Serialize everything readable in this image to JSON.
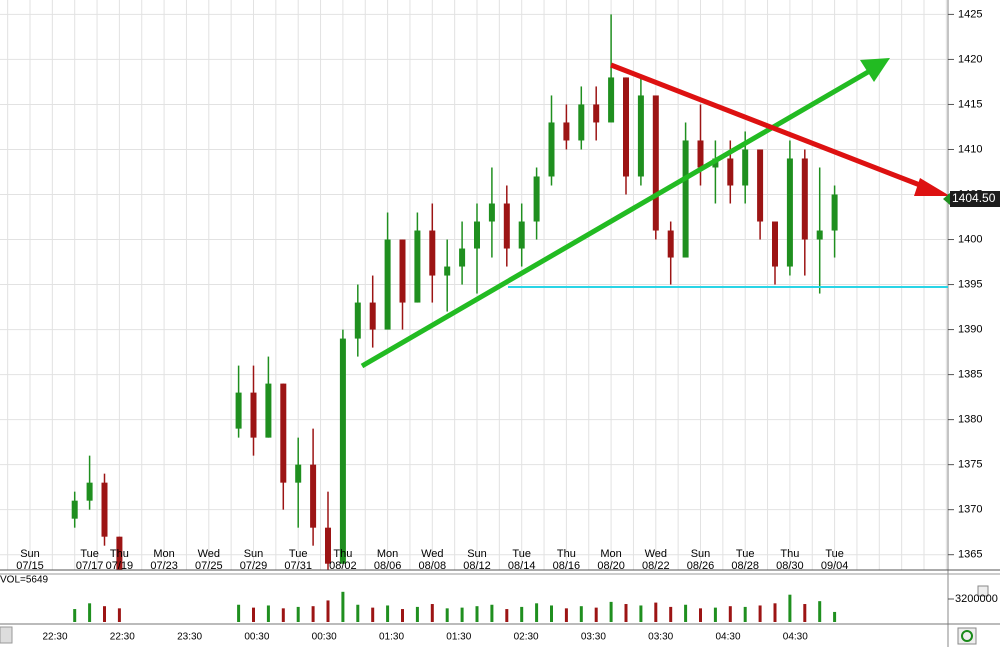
{
  "chart_data": {
    "type": "candlestick",
    "categories": [
      null,
      null,
      null,
      null,
      "Tue 07/17",
      null,
      "Thu 07/19",
      null,
      null,
      "Mon 07/23",
      null,
      null,
      "Wed 07/25",
      null,
      null,
      "Sun 07/29",
      null,
      null,
      "Tue 07/31",
      null,
      null,
      "Thu 08/02",
      null,
      null,
      "Mon 08/06",
      null,
      null,
      "Wed 08/08",
      null,
      null,
      "Sun 08/12",
      null,
      null,
      "Tue 08/14",
      null,
      null,
      "Thu 08/16",
      null,
      null,
      "Mon 08/20",
      null,
      null,
      "Wed 08/22",
      null,
      null,
      "Sun 08/26",
      null,
      null,
      "Tue 08/28",
      null,
      null,
      "Thu 08/30",
      null,
      null,
      "Tue 09/04"
    ],
    "first_label": "Sun 07/15",
    "open": [
      null,
      null,
      null,
      1369,
      1371,
      1373,
      1367,
      null,
      null,
      null,
      null,
      null,
      null,
      null,
      1379,
      1383,
      1378,
      1384,
      1373,
      1375,
      1368,
      1364,
      1389,
      1393,
      1390,
      1400,
      1393,
      1401,
      1396,
      1397,
      1399,
      1402,
      1404,
      1399,
      1402,
      1407,
      1413,
      1411,
      1415,
      1413,
      1418,
      1407,
      1416,
      1401,
      1398,
      1411,
      1408,
      1409,
      1406,
      1410,
      1402,
      1397,
      1409,
      1400,
      1401
    ],
    "high": [
      null,
      null,
      null,
      1372,
      1376,
      1374,
      1367,
      null,
      null,
      null,
      null,
      null,
      null,
      null,
      1386,
      1386,
      1387,
      1384,
      1378,
      1379,
      1372,
      1390,
      1395,
      1396,
      1403,
      1400,
      1403,
      1404,
      1400,
      1402,
      1404,
      1408,
      1406,
      1404,
      1408,
      1416,
      1415,
      1417,
      1417,
      1425,
      1418,
      1418,
      1416,
      1402,
      1413,
      1415,
      1411,
      1411,
      1412,
      1410,
      1402,
      1411,
      1410,
      1408,
      1406
    ],
    "low": [
      null,
      null,
      null,
      1368,
      1370,
      1366,
      1362,
      null,
      null,
      null,
      null,
      null,
      null,
      null,
      1378,
      1376,
      1378,
      1370,
      1368,
      1366,
      1362,
      1364,
      1387,
      1388,
      1390,
      1390,
      1393,
      1393,
      1392,
      1395,
      1394,
      1398,
      1397,
      1397,
      1400,
      1406,
      1410,
      1410,
      1411,
      1413,
      1405,
      1406,
      1400,
      1395,
      1398,
      1406,
      1404,
      1404,
      1404,
      1400,
      1395,
      1396,
      1396,
      1394,
      1398
    ],
    "close": [
      null,
      null,
      null,
      1371,
      1373,
      1367,
      1363,
      null,
      null,
      null,
      null,
      null,
      null,
      null,
      1383,
      1378,
      1384,
      1373,
      1375,
      1368,
      1364,
      1389,
      1393,
      1390,
      1400,
      1393,
      1401,
      1396,
      1397,
      1399,
      1402,
      1404,
      1399,
      1402,
      1407,
      1413,
      1411,
      1415,
      1413,
      1418,
      1407,
      1416,
      1401,
      1398,
      1411,
      1408,
      1409,
      1406,
      1410,
      1402,
      1397,
      1409,
      1400,
      1401,
      1405
    ],
    "volume": [
      null,
      null,
      null,
      1800000,
      2600000,
      2200000,
      1900000,
      null,
      null,
      null,
      null,
      null,
      null,
      null,
      2400000,
      2000000,
      2300000,
      1900000,
      2100000,
      2200000,
      3000000,
      4200000,
      2400000,
      2000000,
      2300000,
      1800000,
      2100000,
      2500000,
      1900000,
      2000000,
      2200000,
      2400000,
      1800000,
      2100000,
      2600000,
      2300000,
      1900000,
      2200000,
      2000000,
      2800000,
      2500000,
      2300000,
      2700000,
      2100000,
      2400000,
      1900000,
      2000000,
      2200000,
      2100000,
      2300000,
      2600000,
      3800000,
      2500000,
      2900000,
      1400000
    ],
    "up_color": "#1f8f1f",
    "down_color": "#9c1414",
    "ylim": [
      1363.3,
      1426.6
    ],
    "yticks": [
      1365,
      1370,
      1375,
      1380,
      1385,
      1390,
      1395,
      1400,
      1405,
      1410,
      1415,
      1420,
      1425
    ],
    "grid": true,
    "last_price": {
      "value": 1404.5,
      "label": "1404.50"
    },
    "volume_label": "VOL=5649",
    "volume_ylim": [
      0,
      6400000
    ],
    "volume_yticks": [
      3200000
    ],
    "time_labels": [
      "22:30",
      "22:30",
      "23:30",
      "00:30",
      "00:30",
      "01:30",
      "01:30",
      "02:30",
      "03:30",
      "03:30",
      "04:30",
      "04:30"
    ]
  }
}
